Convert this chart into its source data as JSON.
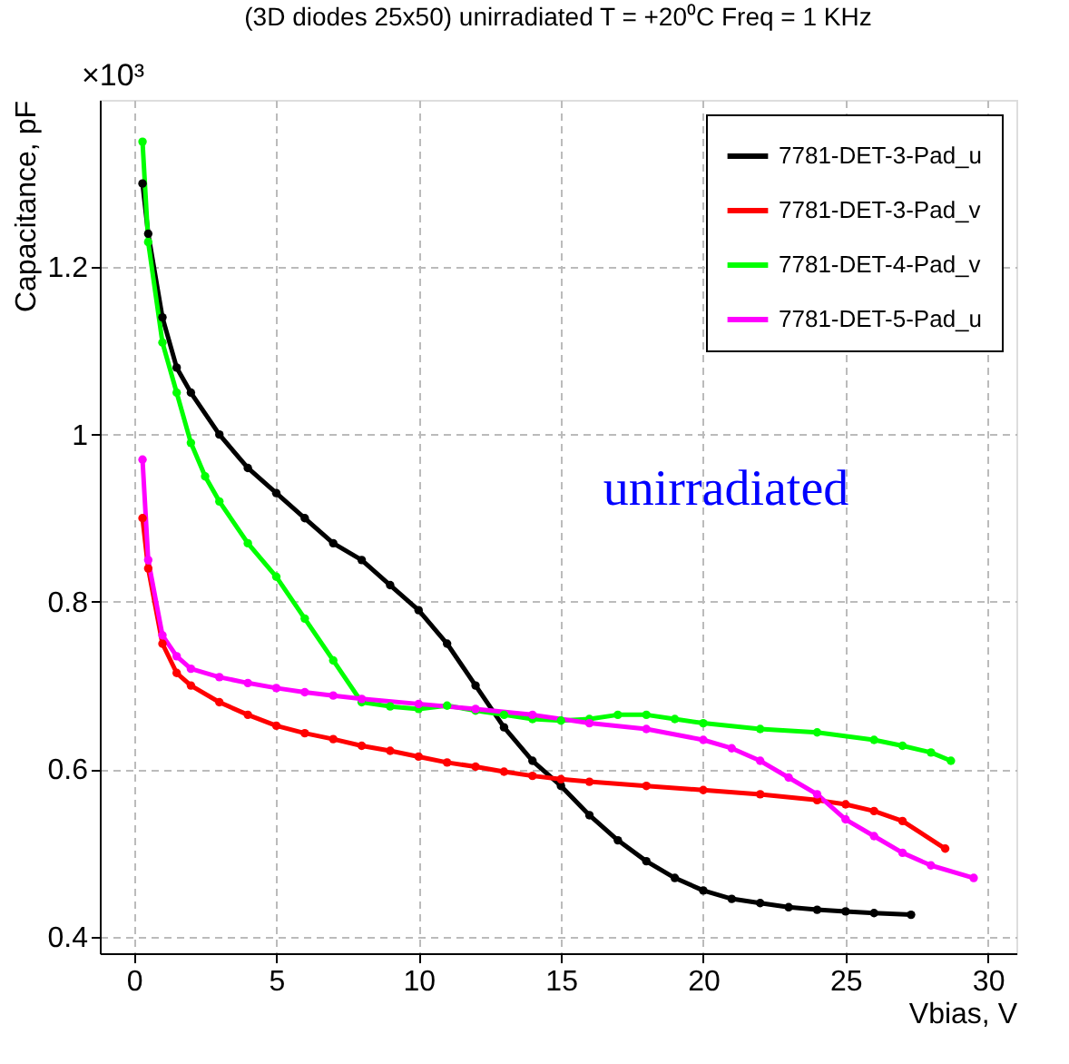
{
  "chart_data": {
    "type": "line",
    "title": "(3D diodes 25x50) unirradiated  T = +20⁰C Freq = 1 KHz",
    "xlabel": "Vbias, V",
    "ylabel": "Capacitance, pF",
    "annotations": [
      "×10³",
      "unirradiated"
    ],
    "xlim": [
      -1.2,
      31
    ],
    "ylim": [
      0.38,
      1.4
    ],
    "xticks": [
      0,
      5,
      10,
      15,
      20,
      25,
      30
    ],
    "yticks": [
      0.4,
      0.6,
      0.8,
      {
        "value": 1,
        "label": "1"
      },
      1.2
    ],
    "grid": true,
    "legend": "top right",
    "marker": "circle",
    "line_style": "solid",
    "series": [
      {
        "name": "7781-DET-3-Pad_u",
        "color": "#000000",
        "x": [
          0.3,
          0.5,
          1,
          1.5,
          2,
          3,
          4,
          5,
          6,
          7,
          8,
          9,
          10,
          11,
          12,
          13,
          14,
          15,
          16,
          17,
          18,
          19,
          20,
          21,
          22,
          23,
          24,
          25,
          26,
          27.3
        ],
        "values": [
          1.3,
          1.24,
          1.14,
          1.08,
          1.05,
          1.0,
          0.96,
          0.93,
          0.9,
          0.87,
          0.85,
          0.82,
          0.79,
          0.75,
          0.7,
          0.65,
          0.61,
          0.58,
          0.545,
          0.515,
          0.49,
          0.47,
          0.455,
          0.445,
          0.44,
          0.435,
          0.432,
          0.43,
          0.428,
          0.426
        ]
      },
      {
        "name": "7781-DET-3-Pad_v",
        "color": "#ff0000",
        "x": [
          0.3,
          0.5,
          1,
          1.5,
          2,
          3,
          4,
          5,
          6,
          7,
          8,
          9,
          10,
          11,
          12,
          13,
          14,
          15,
          16,
          18,
          20,
          22,
          24,
          25,
          26,
          27,
          28.5
        ],
        "values": [
          0.9,
          0.84,
          0.75,
          0.715,
          0.7,
          0.68,
          0.665,
          0.652,
          0.643,
          0.636,
          0.628,
          0.622,
          0.615,
          0.608,
          0.603,
          0.597,
          0.592,
          0.588,
          0.585,
          0.58,
          0.575,
          0.57,
          0.563,
          0.558,
          0.55,
          0.538,
          0.505
        ]
      },
      {
        "name": "7781-DET-4-Pad_v",
        "color": "#00ff00",
        "x": [
          0.3,
          0.5,
          1,
          1.5,
          2,
          2.5,
          3,
          4,
          5,
          6,
          7,
          8,
          9,
          10,
          11,
          12,
          13,
          14,
          15,
          16,
          17,
          18,
          19,
          20,
          22,
          24,
          26,
          27,
          28,
          28.7
        ],
        "values": [
          1.35,
          1.23,
          1.11,
          1.05,
          0.99,
          0.95,
          0.92,
          0.87,
          0.83,
          0.78,
          0.73,
          0.68,
          0.675,
          0.672,
          0.676,
          0.67,
          0.665,
          0.66,
          0.658,
          0.66,
          0.665,
          0.665,
          0.66,
          0.655,
          0.648,
          0.644,
          0.635,
          0.628,
          0.62,
          0.61
        ]
      },
      {
        "name": "7781-DET-5-Pad_u",
        "color": "#ff00ff",
        "x": [
          0.3,
          0.5,
          1,
          1.5,
          2,
          3,
          4,
          5,
          6,
          7,
          8,
          10,
          12,
          14,
          16,
          18,
          20,
          21,
          22,
          23,
          24,
          25,
          26,
          27,
          28,
          29.5
        ],
        "values": [
          0.97,
          0.85,
          0.76,
          0.735,
          0.72,
          0.71,
          0.703,
          0.697,
          0.692,
          0.688,
          0.684,
          0.678,
          0.672,
          0.665,
          0.655,
          0.648,
          0.635,
          0.625,
          0.61,
          0.59,
          0.57,
          0.54,
          0.52,
          0.5,
          0.485,
          0.47
        ]
      }
    ]
  }
}
